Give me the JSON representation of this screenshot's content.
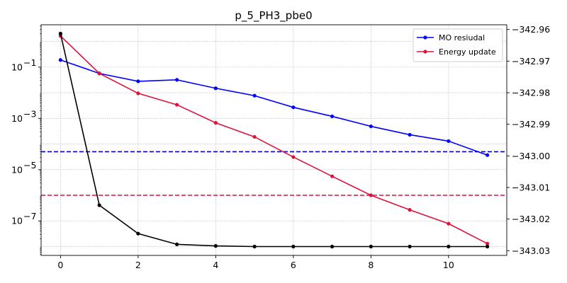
{
  "chart_data": {
    "type": "line",
    "title": "p_5_PH3_pbe0",
    "xlabel": "",
    "ylabel": "",
    "y2label": "",
    "xlim": [
      -0.5,
      11.5
    ],
    "ylim_log": [
      4.5e-09,
      4.5
    ],
    "y2lim": [
      -343.0315,
      -342.9585
    ],
    "y_scale": "log",
    "grid": true,
    "legend_position": "upper right",
    "x_ticks": [
      0,
      2,
      4,
      6,
      8,
      10
    ],
    "x_tick_labels": [
      "0",
      "2",
      "4",
      "6",
      "8",
      "10"
    ],
    "y_ticks": [
      1e-07,
      1e-05,
      0.001,
      0.1
    ],
    "y_tick_labels": [
      {
        "base": "10",
        "exp": "−7"
      },
      {
        "base": "10",
        "exp": "−5"
      },
      {
        "base": "10",
        "exp": "−3"
      },
      {
        "base": "10",
        "exp": "−1"
      }
    ],
    "y2_ticks": [
      -342.96,
      -342.97,
      -342.98,
      -342.99,
      -343.0,
      -343.01,
      -343.02,
      -343.03
    ],
    "y2_tick_labels": [
      "−342.96",
      "−342.97",
      "−342.98",
      "−342.99",
      "−343.00",
      "−343.01",
      "−343.02",
      "−343.03"
    ],
    "x": [
      0,
      1,
      2,
      3,
      4,
      5,
      6,
      7,
      8,
      9,
      10,
      11
    ],
    "series": [
      {
        "name": "MO resiudal",
        "axis": "left",
        "color": "#0000ff",
        "in_legend": true,
        "values": [
          0.19,
          0.057,
          0.028,
          0.032,
          0.015,
          0.0077,
          0.0027,
          0.0012,
          0.00049,
          0.00023,
          0.00013,
          3.7e-05
        ]
      },
      {
        "name": "Energy update",
        "axis": "left",
        "color": "#dc143c",
        "in_legend": true,
        "values": [
          1.65,
          0.057,
          0.0095,
          0.0034,
          0.00067,
          0.00019,
          3.1e-05,
          5.5e-06,
          1e-06,
          2.7e-07,
          7.8e-08,
          1.3e-08
        ]
      },
      {
        "name": "",
        "axis": "right",
        "color": "#000000",
        "in_legend": false,
        "values": [
          -342.9613,
          -343.0156,
          -343.0246,
          -343.028,
          -343.0285,
          -343.0287,
          -343.0287,
          -343.0287,
          -343.0287,
          -343.0287,
          -343.0287,
          -343.0287
        ]
      }
    ],
    "reference_lines": [
      {
        "axis": "left",
        "value": 5e-05,
        "color": "#0000cd",
        "style": "dashed"
      },
      {
        "axis": "left",
        "value": 1e-06,
        "color": "#dc143c",
        "style": "dashed"
      }
    ]
  }
}
